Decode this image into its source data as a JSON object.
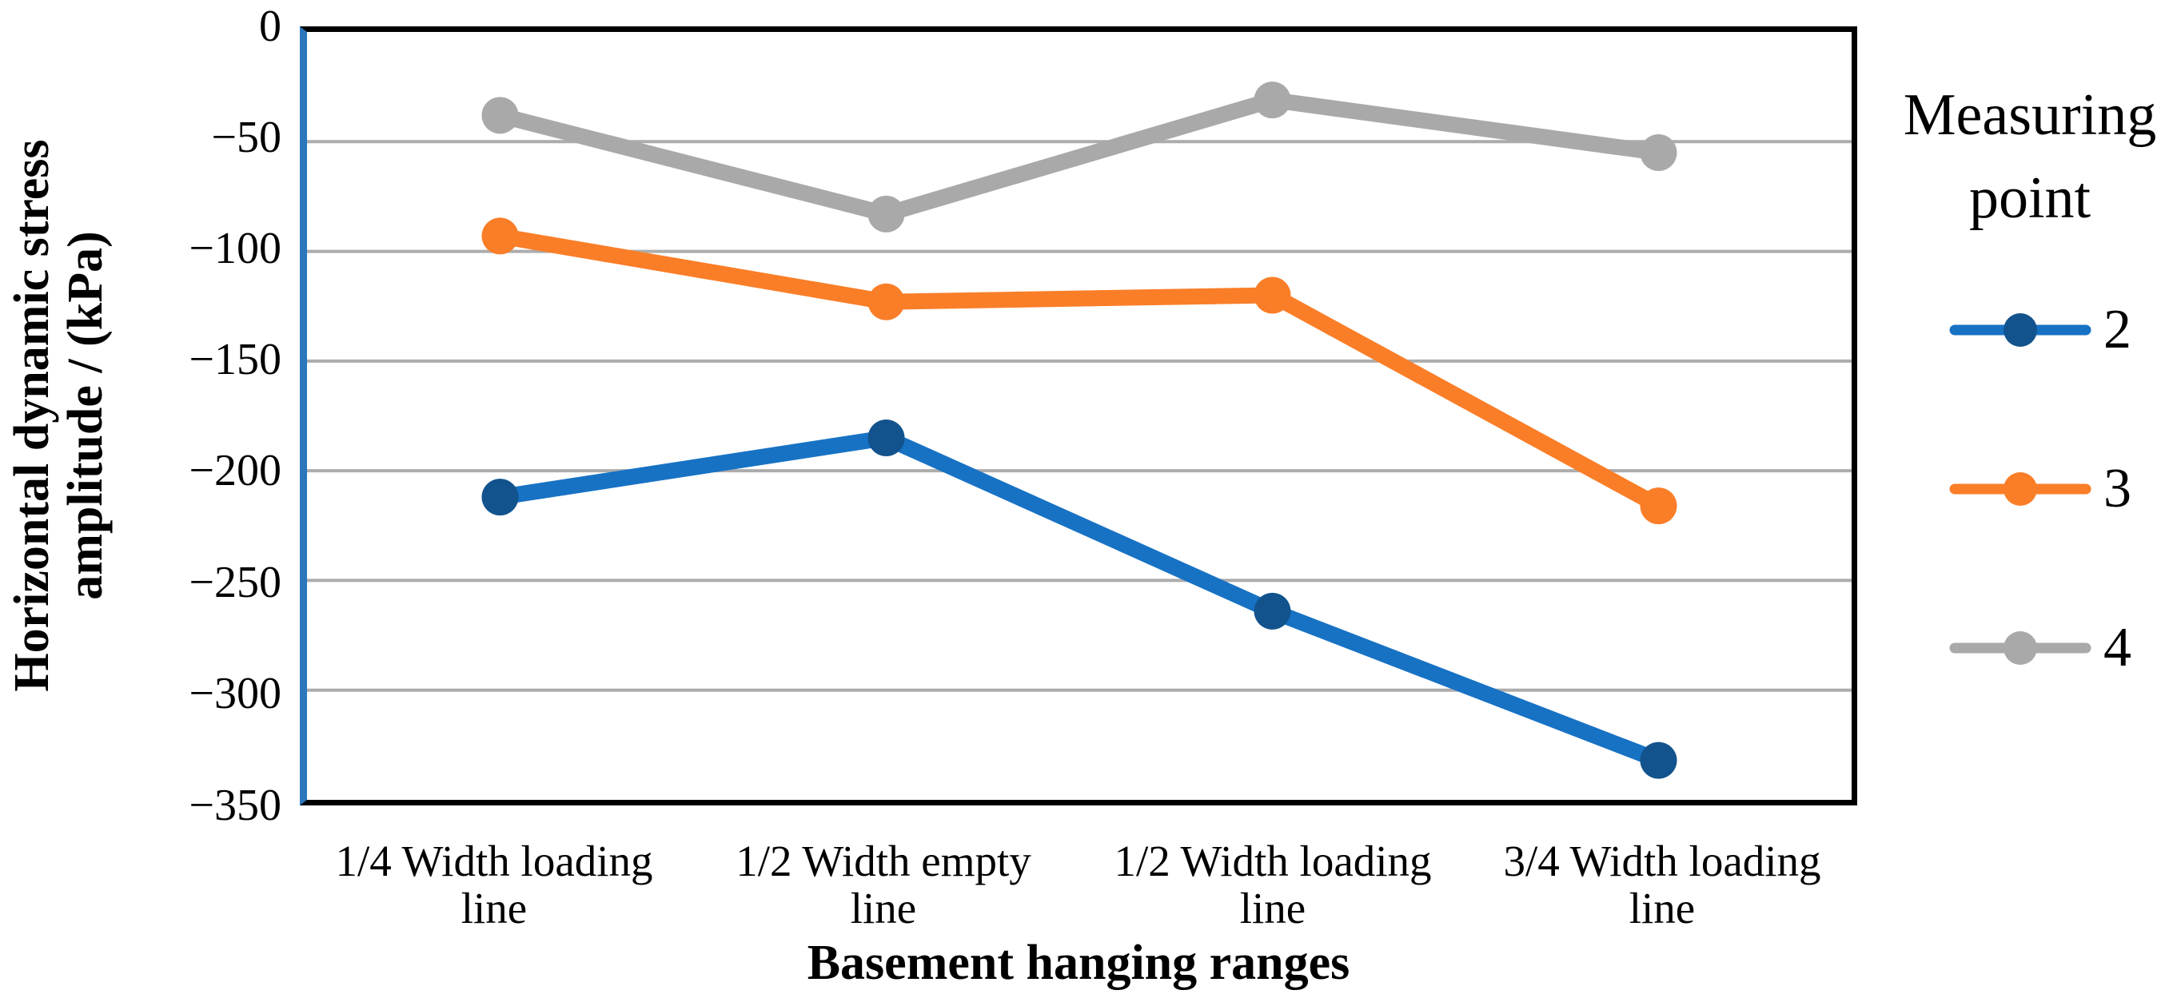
{
  "page": {
    "background": "#FFFFFF"
  },
  "y_axis": {
    "title": "Horizontal dynamic stress\namplitude / (kPa)",
    "ticks": [
      "0",
      "−50",
      "−100",
      "−150",
      "−200",
      "−250",
      "−300",
      "−350"
    ],
    "axis_line_color": "#2B76BC"
  },
  "x_axis": {
    "title": "Basement hanging ranges",
    "labels": [
      "1/4 Width loading\nline",
      "1/2 Width empty\nline",
      "1/2 Width loading\nline",
      "3/4 Width loading\nline"
    ]
  },
  "legend": {
    "title": "Measuring\npoint"
  },
  "colors": {
    "gridline": "#ACACAC",
    "frame": "#000000"
  },
  "chart_data": {
    "type": "line",
    "title": "",
    "categories": [
      "1/4 Width loading line",
      "1/2 Width empty line",
      "1/2 Width loading line",
      "3/4 Width loading line"
    ],
    "xlabel": "Basement hanging ranges",
    "ylabel": "Horizontal dynamic stress amplitude / (kPa)",
    "ylim": [
      -350,
      0
    ],
    "ytick_interval": 50,
    "grid": "horizontal",
    "legend_title": "Measuring point",
    "legend_position": "right",
    "series": [
      {
        "name": "2",
        "values": [
          -212,
          -185,
          -264,
          -332
        ],
        "line_color": "#1772C4",
        "marker_color": "#12538D"
      },
      {
        "name": "3",
        "values": [
          -93,
          -123,
          -120,
          -216
        ],
        "line_color": "#FA7E28",
        "marker_color": "#FA7E28"
      },
      {
        "name": "4",
        "values": [
          -38,
          -83,
          -31,
          -55
        ],
        "line_color": "#A9A9A9",
        "marker_color": "#A9A9A9"
      }
    ]
  }
}
